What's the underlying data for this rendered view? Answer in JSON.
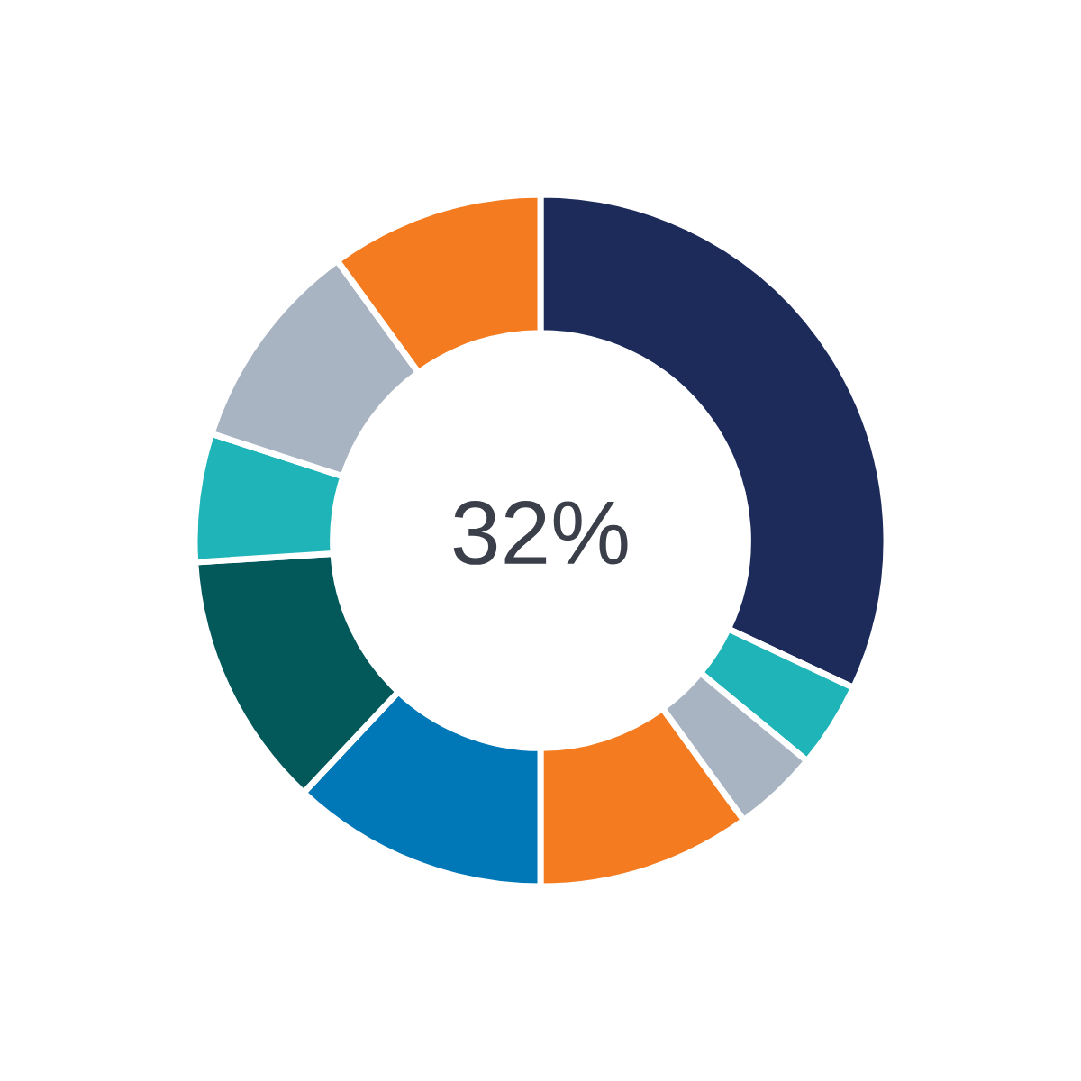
{
  "chart_data": {
    "type": "donut",
    "categories": [
      null,
      null,
      null,
      null,
      null,
      null,
      null,
      null,
      null
    ],
    "values": [
      32,
      4,
      4,
      10,
      12,
      12,
      6,
      10,
      10
    ],
    "colors": [
      "#1c2b5a",
      "#1eb4b8",
      "#a9b4c2",
      "#f47b20",
      "#0077b6",
      "#03585a",
      "#1eb4b8",
      "#a9b4c2",
      "#f47b20"
    ],
    "annotations": [
      "32%"
    ]
  }
}
